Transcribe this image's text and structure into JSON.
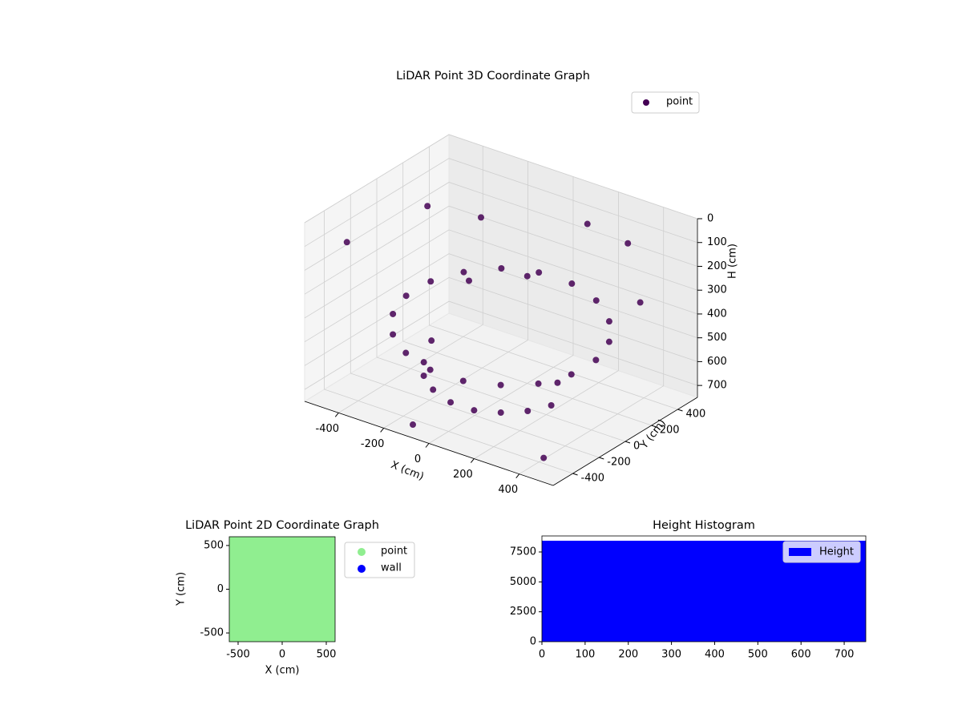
{
  "chart_data": [
    {
      "type": "scatter3d",
      "title": "LiDAR Point 3D Coordinate Graph",
      "xlabel": "X (cm)",
      "ylabel": "Y (cm)",
      "zlabel": "H (cm)",
      "xlim": [
        -550,
        550
      ],
      "ylim": [
        -550,
        550
      ],
      "zlim": [
        750,
        0
      ],
      "xticks": [
        -400,
        -200,
        0,
        200,
        400
      ],
      "yticks": [
        -400,
        -200,
        0,
        200,
        400
      ],
      "zticks": [
        0,
        100,
        200,
        300,
        400,
        500,
        600,
        700
      ],
      "grid": true,
      "series": [
        {
          "name": "point",
          "color": "#440154",
          "x": [
            420,
            395,
            322,
            210,
            73,
            -73,
            -210,
            -322,
            -395,
            -420,
            -395,
            -322,
            -210,
            -73,
            73,
            210,
            322,
            395,
            -282,
            -230,
            -150,
            -52,
            52,
            150,
            230,
            282,
            -500,
            -450,
            300,
            500,
            0,
            -200,
            450,
            -100,
            150,
            -350,
            250,
            -250
          ],
          "y": [
            0,
            144,
            270,
            364,
            414,
            414,
            364,
            270,
            144,
            0,
            -144,
            -270,
            -364,
            -414,
            -414,
            -364,
            -270,
            -144,
            -103,
            -193,
            -260,
            -295,
            -295,
            -260,
            -193,
            -103,
            300,
            -400,
            450,
            200,
            200,
            100,
            -450,
            -500,
            400,
            450,
            0,
            -100
          ],
          "z": [
            450,
            430,
            410,
            390,
            380,
            380,
            390,
            410,
            430,
            450,
            470,
            490,
            500,
            510,
            510,
            500,
            490,
            470,
            650,
            660,
            670,
            680,
            680,
            670,
            660,
            650,
            200,
            100,
            150,
            250,
            300,
            350,
            700,
            720,
            100,
            250,
            600,
            550
          ]
        }
      ]
    },
    {
      "type": "scatter",
      "title": "LiDAR Point 2D Coordinate Graph",
      "xlabel": "X (cm)",
      "ylabel": "Y (cm)",
      "xlim": [
        -600,
        600
      ],
      "ylim": [
        -600,
        600
      ],
      "xticks": [
        -500,
        0,
        500
      ],
      "yticks": [
        -500,
        0,
        500
      ],
      "series": [
        {
          "name": "point",
          "color": "#90ee90",
          "x": [
            -500,
            -300,
            -100,
            100,
            300,
            500,
            -500,
            -300,
            -100,
            100,
            300,
            500,
            -500,
            -300,
            -100,
            100,
            300,
            500,
            -500,
            -300,
            -100,
            100,
            300,
            500,
            -500,
            -300,
            -100,
            100,
            300,
            500,
            -500,
            -300,
            -100,
            100,
            300,
            500
          ],
          "y": [
            500,
            500,
            500,
            500,
            500,
            500,
            300,
            300,
            300,
            300,
            300,
            300,
            100,
            100,
            100,
            100,
            100,
            100,
            -100,
            -100,
            -100,
            -100,
            -100,
            -100,
            -300,
            -300,
            -300,
            -300,
            -300,
            -300,
            -500,
            -500,
            -500,
            -500,
            -500,
            -500
          ]
        },
        {
          "name": "wall",
          "color": "#0000ff",
          "x": [],
          "y": []
        }
      ]
    },
    {
      "type": "histogram",
      "title": "Height Histogram",
      "bins": [
        0,
        750
      ],
      "series": [
        {
          "name": "Height",
          "color": "#0000ff",
          "values": [
            8440
          ]
        }
      ],
      "xlim": [
        0,
        750
      ],
      "ylim": [
        0,
        8840
      ],
      "xticks": [
        0,
        100,
        200,
        300,
        400,
        500,
        600,
        700
      ],
      "yticks": [
        0,
        2500,
        5000,
        7500
      ],
      "legend": "upper right"
    }
  ]
}
